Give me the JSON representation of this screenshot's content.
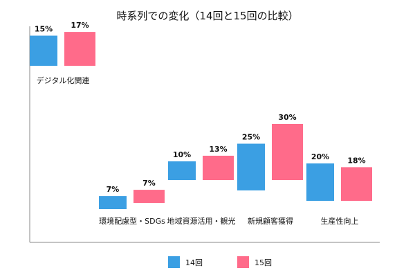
{
  "chart_data": {
    "type": "bar",
    "subtype": "floating-bar",
    "title": "時系列での変化（14回と15回の比較）",
    "value_unit": "%",
    "categories": [
      "デジタル化関連",
      "環境配慮型・SDGs",
      "地域資源活用・観光",
      "新規顧客獲得",
      "生産性向上"
    ],
    "series": [
      {
        "name": "14回",
        "color": "#3b9fe3",
        "values": [
          15,
          7,
          10,
          25,
          20
        ],
        "labels": [
          "15%",
          "7%",
          "10%",
          "25%",
          "20%"
        ]
      },
      {
        "name": "15回",
        "color": "#ff6b8a",
        "values": [
          17,
          7,
          13,
          30,
          18
        ],
        "labels": [
          "17%",
          "7%",
          "13%",
          "30%",
          "18%"
        ]
      }
    ],
    "legend": {
      "position": "bottom",
      "items": [
        "14回",
        "15回"
      ]
    }
  }
}
